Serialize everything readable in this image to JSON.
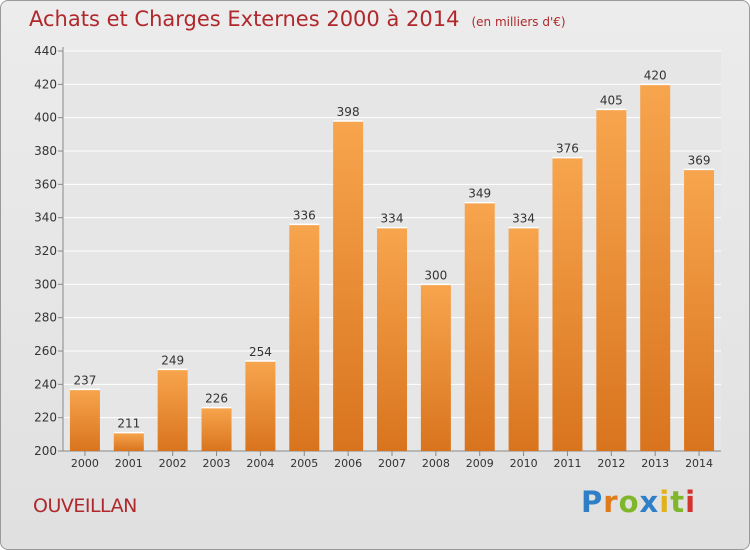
{
  "header": {
    "title": "Achats et Charges Externes 2000 à 2014",
    "subtitle": "(en milliers d'€)"
  },
  "footer": {
    "place": "OUVEILLAN",
    "logo": [
      "P",
      "r",
      "o",
      "x",
      "i",
      "t",
      "i"
    ]
  },
  "colors": {
    "bar_top": "#f7a54e",
    "bar_bottom": "#d9741e",
    "title": "#b0282c"
  },
  "chart_data": {
    "type": "bar",
    "title": "Achats et Charges Externes 2000 à 2014",
    "subtitle": "(en milliers d'€)",
    "categories": [
      "2000",
      "2001",
      "2002",
      "2003",
      "2004",
      "2005",
      "2006",
      "2007",
      "2008",
      "2009",
      "2010",
      "2011",
      "2012",
      "2013",
      "2014"
    ],
    "values": [
      237,
      211,
      249,
      226,
      254,
      336,
      398,
      334,
      300,
      349,
      334,
      376,
      405,
      420,
      369
    ],
    "ylim": [
      200,
      440
    ],
    "yticks": [
      200,
      220,
      240,
      260,
      280,
      300,
      320,
      340,
      360,
      380,
      400,
      420,
      440
    ],
    "grid": true,
    "data_labels": true
  }
}
